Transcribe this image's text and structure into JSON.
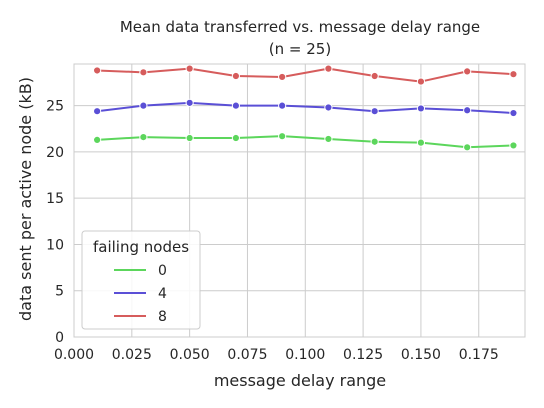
{
  "chart_data": {
    "type": "line",
    "title": "Mean data transferred vs. message delay range",
    "subtitle": "(n = 25)",
    "xlabel": "message delay range",
    "ylabel": "data sent per active node (kB)",
    "xlim": [
      0.0,
      0.195
    ],
    "ylim": [
      0,
      29.5
    ],
    "xticks": [
      0.0,
      0.025,
      0.05,
      0.075,
      0.1,
      0.125,
      0.15,
      0.175
    ],
    "xtick_labels": [
      "0.000",
      "0.025",
      "0.050",
      "0.075",
      "0.100",
      "0.125",
      "0.150",
      "0.175"
    ],
    "yticks": [
      0,
      5,
      10,
      15,
      20,
      25
    ],
    "ytick_labels": [
      "0",
      "5",
      "10",
      "15",
      "20",
      "25"
    ],
    "grid": true,
    "legend": {
      "title": "failing nodes",
      "placement": "lower-left"
    },
    "x": [
      0.01,
      0.03,
      0.05,
      0.07,
      0.09,
      0.11,
      0.13,
      0.15,
      0.17,
      0.19
    ],
    "series": [
      {
        "name": "0",
        "color": "#5cd65c",
        "values": [
          21.3,
          21.6,
          21.5,
          21.5,
          21.7,
          21.4,
          21.1,
          21.0,
          20.5,
          20.7
        ]
      },
      {
        "name": "4",
        "color": "#5a4fd6",
        "values": [
          24.4,
          25.0,
          25.3,
          25.0,
          25.0,
          24.8,
          24.4,
          24.7,
          24.5,
          24.2
        ]
      },
      {
        "name": "8",
        "color": "#d65c5c",
        "values": [
          28.8,
          28.6,
          29.0,
          28.2,
          28.1,
          29.0,
          28.2,
          27.6,
          28.7,
          28.4
        ]
      }
    ]
  }
}
